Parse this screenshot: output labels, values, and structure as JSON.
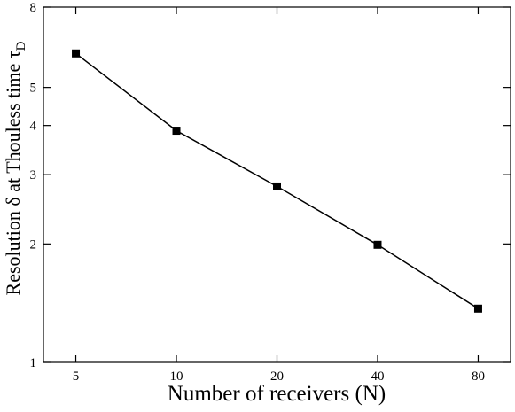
{
  "chart_data": {
    "type": "line",
    "title": "",
    "xlabel": "Number of receivers (N)",
    "ylabel": {
      "main": "Resolution δ at Thouless time τ",
      "subscript": "D"
    },
    "xscale": "log",
    "yscale": "log",
    "xlim": [
      4,
      100
    ],
    "ylim": [
      1,
      8
    ],
    "xticks": [
      5,
      10,
      20,
      40,
      80
    ],
    "yticks": [
      1,
      2,
      3,
      4,
      5,
      8
    ],
    "grid": false,
    "legend": "none",
    "series": [
      {
        "x": [
          5,
          10,
          20,
          40,
          80
        ],
        "y": [
          6.1,
          3.88,
          2.8,
          1.99,
          1.37
        ],
        "marker": "square",
        "color": "#000000"
      }
    ]
  }
}
